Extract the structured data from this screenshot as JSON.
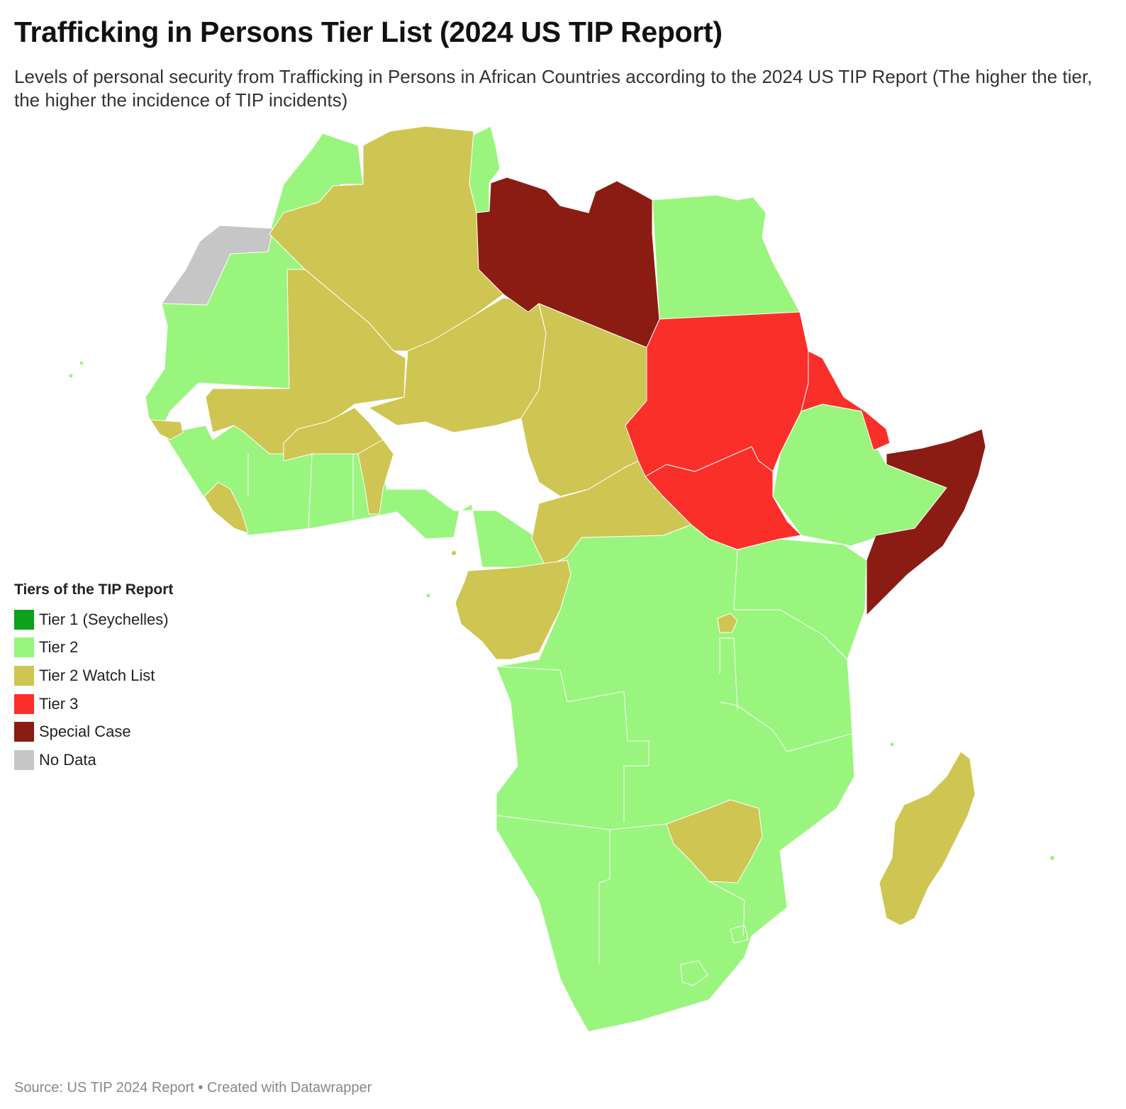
{
  "header": {
    "title": "Trafficking in Persons Tier List (2024 US TIP Report)",
    "subtitle": "Levels of personal security from Trafficking in Persons in African Countries according to the 2024 US TIP Report (The higher the tier, the higher the incidence of TIP incidents)"
  },
  "legend": {
    "title": "Tiers of the TIP Report",
    "items": [
      {
        "label": "Tier 1 (Seychelles)",
        "color": "#0da11c"
      },
      {
        "label": "Tier 2",
        "color": "#9af57e"
      },
      {
        "label": "Tier 2 Watch List",
        "color": "#cfc552"
      },
      {
        "label": "Tier 3",
        "color": "#fb2f2a"
      },
      {
        "label": "Special Case",
        "color": "#8b1c14"
      },
      {
        "label": "No Data",
        "color": "#c6c6c6"
      }
    ]
  },
  "footer": {
    "source": "Source: US TIP 2024 Report • Created with Datawrapper"
  }
}
